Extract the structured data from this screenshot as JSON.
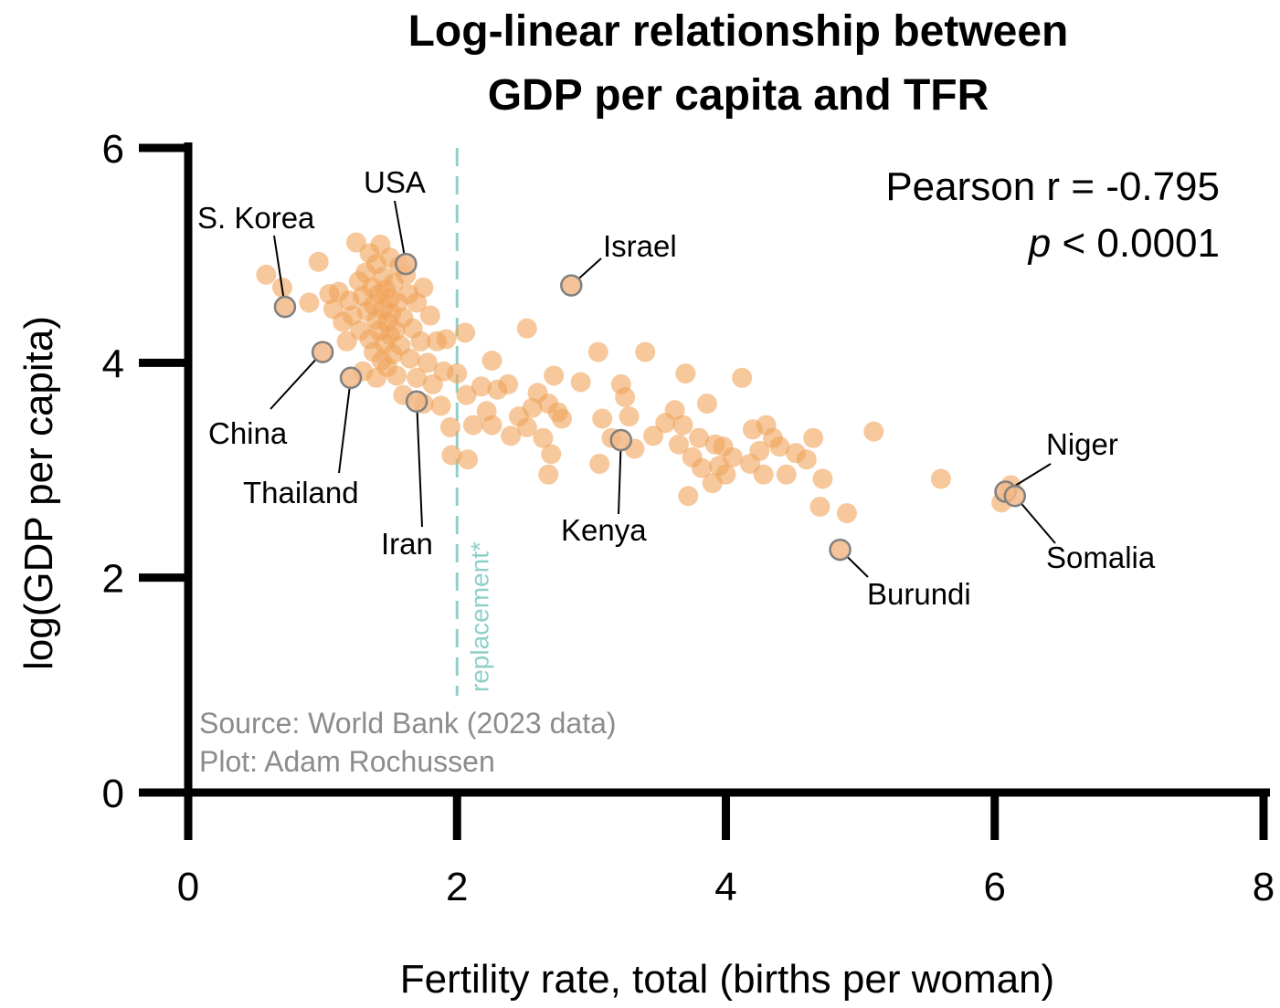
{
  "chart_data": {
    "type": "scatter",
    "title": [
      "Log-linear relationship between",
      "GDP per capita and TFR"
    ],
    "xlabel": "Fertility rate, total (births per woman)",
    "ylabel": "log(GDP per capita)",
    "xlim": [
      0,
      8
    ],
    "ylim": [
      0,
      6
    ],
    "xticks": [
      0,
      2,
      4,
      6,
      8
    ],
    "yticks": [
      0,
      2,
      4,
      6
    ],
    "xtick_labels": [
      "0",
      "2",
      "4",
      "6",
      "8"
    ],
    "ytick_labels": [
      "0",
      "2",
      "4",
      "6"
    ],
    "grid": false,
    "point_color": "#f0a35a",
    "highlight_stroke": "#808080",
    "reference_line": {
      "x": 2.0,
      "label": "replacement*",
      "color": "#8ed0c8",
      "y_range": [
        0.9,
        6.0
      ]
    },
    "stats": {
      "r_text": "Pearson r = -0.795",
      "p_italic": "p",
      "p_rest": " < 0.0001"
    },
    "source": [
      "Source: World Bank (2023 data)",
      "Plot: Adam Rochussen"
    ],
    "points": [
      [
        0.58,
        4.82
      ],
      [
        0.7,
        4.7
      ],
      [
        0.97,
        4.94
      ],
      [
        0.9,
        4.56
      ],
      [
        1.05,
        4.64
      ],
      [
        1.08,
        4.5
      ],
      [
        1.12,
        4.66
      ],
      [
        1.15,
        4.38
      ],
      [
        1.18,
        4.2
      ],
      [
        1.2,
        4.58
      ],
      [
        1.22,
        4.44
      ],
      [
        1.25,
        5.12
      ],
      [
        1.27,
        4.76
      ],
      [
        1.28,
        4.3
      ],
      [
        1.3,
        4.62
      ],
      [
        1.3,
        3.92
      ],
      [
        1.32,
        4.84
      ],
      [
        1.33,
        4.48
      ],
      [
        1.35,
        5.02
      ],
      [
        1.35,
        4.22
      ],
      [
        1.37,
        4.7
      ],
      [
        1.38,
        4.54
      ],
      [
        1.38,
        4.1
      ],
      [
        1.4,
        4.92
      ],
      [
        1.4,
        4.4
      ],
      [
        1.4,
        3.86
      ],
      [
        1.42,
        4.64
      ],
      [
        1.42,
        4.3
      ],
      [
        1.43,
        5.1
      ],
      [
        1.44,
        4.02
      ],
      [
        1.45,
        4.8
      ],
      [
        1.45,
        4.5
      ],
      [
        1.46,
        4.18
      ],
      [
        1.47,
        4.68
      ],
      [
        1.48,
        4.38
      ],
      [
        1.48,
        3.96
      ],
      [
        1.5,
        4.98
      ],
      [
        1.5,
        4.6
      ],
      [
        1.5,
        4.26
      ],
      [
        1.51,
        4.46
      ],
      [
        1.52,
        4.08
      ],
      [
        1.53,
        4.74
      ],
      [
        1.54,
        4.3
      ],
      [
        1.55,
        3.88
      ],
      [
        1.56,
        4.56
      ],
      [
        1.57,
        4.9
      ],
      [
        1.58,
        4.16
      ],
      [
        1.6,
        4.42
      ],
      [
        1.6,
        3.7
      ],
      [
        1.62,
        4.82
      ],
      [
        1.64,
        4.64
      ],
      [
        1.65,
        4.04
      ],
      [
        1.67,
        4.32
      ],
      [
        1.7,
        3.86
      ],
      [
        1.7,
        4.56
      ],
      [
        1.73,
        4.2
      ],
      [
        1.75,
        4.7
      ],
      [
        1.75,
        3.62
      ],
      [
        1.78,
        4.0
      ],
      [
        1.8,
        4.44
      ],
      [
        1.82,
        3.8
      ],
      [
        1.85,
        4.2
      ],
      [
        1.88,
        3.6
      ],
      [
        1.9,
        3.92
      ],
      [
        1.92,
        4.22
      ],
      [
        1.95,
        3.4
      ],
      [
        1.96,
        3.14
      ],
      [
        2.0,
        3.9
      ],
      [
        2.06,
        4.28
      ],
      [
        2.07,
        3.7
      ],
      [
        2.08,
        3.1
      ],
      [
        2.12,
        3.42
      ],
      [
        2.18,
        3.78
      ],
      [
        2.22,
        3.55
      ],
      [
        2.26,
        3.42
      ],
      [
        2.26,
        4.02
      ],
      [
        2.3,
        3.75
      ],
      [
        2.38,
        3.8
      ],
      [
        2.4,
        3.32
      ],
      [
        2.46,
        3.5
      ],
      [
        2.52,
        3.4
      ],
      [
        2.52,
        4.32
      ],
      [
        2.56,
        3.58
      ],
      [
        2.6,
        3.72
      ],
      [
        2.64,
        3.3
      ],
      [
        2.68,
        3.62
      ],
      [
        2.68,
        2.96
      ],
      [
        2.7,
        3.15
      ],
      [
        2.72,
        3.88
      ],
      [
        2.75,
        3.54
      ],
      [
        2.78,
        3.48
      ],
      [
        2.92,
        3.82
      ],
      [
        3.05,
        4.1
      ],
      [
        3.06,
        3.06
      ],
      [
        3.08,
        3.48
      ],
      [
        3.15,
        3.3
      ],
      [
        3.22,
        3.8
      ],
      [
        3.25,
        3.68
      ],
      [
        3.28,
        3.5
      ],
      [
        3.32,
        3.2
      ],
      [
        3.4,
        4.1
      ],
      [
        3.46,
        3.32
      ],
      [
        3.55,
        3.44
      ],
      [
        3.62,
        3.56
      ],
      [
        3.65,
        3.24
      ],
      [
        3.68,
        3.42
      ],
      [
        3.7,
        3.9
      ],
      [
        3.72,
        2.76
      ],
      [
        3.75,
        3.12
      ],
      [
        3.8,
        3.3
      ],
      [
        3.82,
        3.02
      ],
      [
        3.86,
        3.62
      ],
      [
        3.9,
        2.88
      ],
      [
        3.92,
        3.24
      ],
      [
        3.95,
        3.04
      ],
      [
        3.98,
        3.22
      ],
      [
        4.0,
        2.96
      ],
      [
        4.05,
        3.12
      ],
      [
        4.12,
        3.86
      ],
      [
        4.18,
        3.06
      ],
      [
        4.2,
        3.38
      ],
      [
        4.25,
        3.18
      ],
      [
        4.28,
        2.96
      ],
      [
        4.3,
        3.42
      ],
      [
        4.35,
        3.3
      ],
      [
        4.4,
        3.22
      ],
      [
        4.45,
        2.96
      ],
      [
        4.52,
        3.16
      ],
      [
        4.6,
        3.1
      ],
      [
        4.65,
        3.3
      ],
      [
        4.7,
        2.66
      ],
      [
        4.72,
        2.92
      ],
      [
        4.9,
        2.6
      ],
      [
        5.1,
        3.36
      ],
      [
        5.6,
        2.92
      ],
      [
        6.05,
        2.7
      ],
      [
        6.12,
        2.86
      ]
    ],
    "highlighted": [
      {
        "name": "S. Korea",
        "x": 0.72,
        "y": 4.52
      },
      {
        "name": "USA",
        "x": 1.62,
        "y": 4.92
      },
      {
        "name": "Israel",
        "x": 2.85,
        "y": 4.72
      },
      {
        "name": "China",
        "x": 1.0,
        "y": 4.1
      },
      {
        "name": "Thailand",
        "x": 1.21,
        "y": 3.86
      },
      {
        "name": "Iran",
        "x": 1.7,
        "y": 3.64
      },
      {
        "name": "Kenya",
        "x": 3.22,
        "y": 3.28
      },
      {
        "name": "Burundi",
        "x": 4.85,
        "y": 2.26
      },
      {
        "name": "Niger",
        "x": 6.08,
        "y": 2.8
      },
      {
        "name": "Somalia",
        "x": 6.15,
        "y": 2.76
      }
    ]
  }
}
